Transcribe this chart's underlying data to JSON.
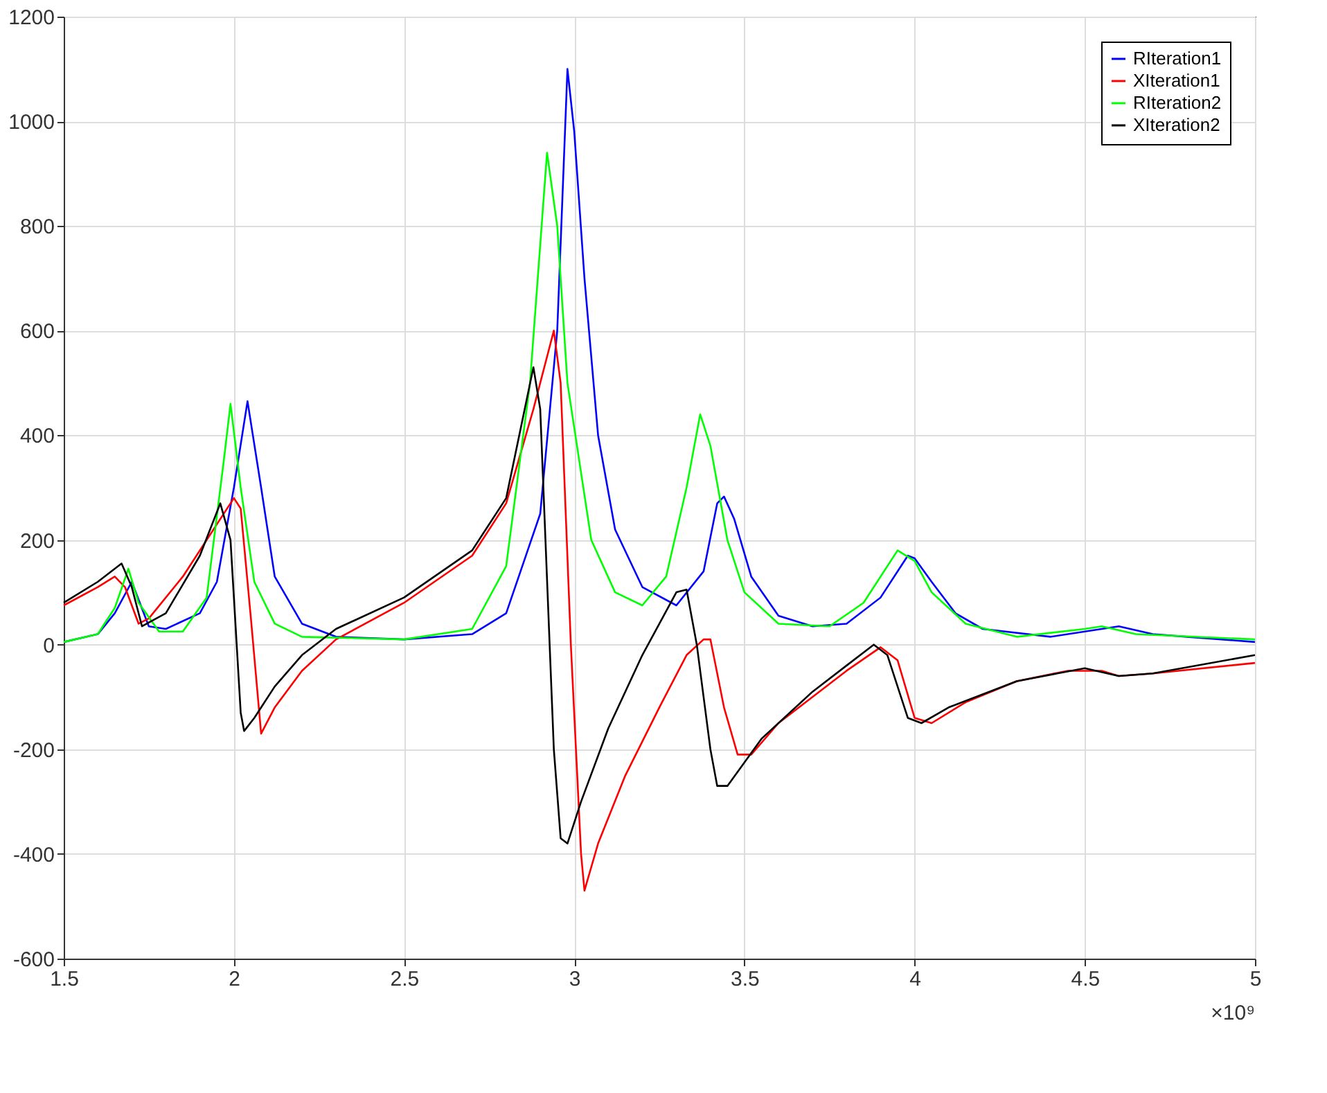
{
  "chart_data": {
    "type": "line",
    "xlim": [
      1.5,
      5
    ],
    "xticks": [
      1.5,
      2,
      2.5,
      3,
      3.5,
      4,
      4.5,
      5
    ],
    "ylim": [
      -600,
      1200
    ],
    "yticks": [
      -600,
      -400,
      -200,
      0,
      200,
      400,
      600,
      800,
      1000,
      1200
    ],
    "grid": true,
    "legend": "top right",
    "line_style": "solid",
    "marker": "none",
    "annotations": [
      "×10⁹"
    ],
    "series": [
      {
        "name": "RIteration1",
        "color": "#0000ff",
        "x": [
          1.5,
          1.6,
          1.65,
          1.7,
          1.75,
          1.8,
          1.9,
          1.95,
          2.0,
          2.04,
          2.08,
          2.12,
          2.2,
          2.3,
          2.5,
          2.7,
          2.8,
          2.9,
          2.95,
          2.98,
          3.0,
          3.03,
          3.07,
          3.12,
          3.2,
          3.3,
          3.38,
          3.42,
          3.44,
          3.47,
          3.52,
          3.6,
          3.7,
          3.8,
          3.9,
          3.98,
          4.0,
          4.05,
          4.12,
          4.2,
          4.4,
          4.55,
          4.6,
          4.7,
          4.8,
          5.0
        ],
        "values": [
          5,
          20,
          60,
          120,
          35,
          30,
          60,
          120,
          300,
          465,
          300,
          130,
          40,
          15,
          10,
          20,
          60,
          250,
          600,
          1100,
          980,
          700,
          400,
          220,
          110,
          75,
          140,
          270,
          283,
          240,
          130,
          55,
          35,
          40,
          90,
          170,
          165,
          120,
          60,
          30,
          15,
          30,
          35,
          20,
          15,
          5
        ]
      },
      {
        "name": "XIteration1",
        "color": "#ff0000",
        "x": [
          1.5,
          1.6,
          1.65,
          1.68,
          1.72,
          1.75,
          1.85,
          1.95,
          2.0,
          2.02,
          2.05,
          2.08,
          2.12,
          2.2,
          2.3,
          2.5,
          2.7,
          2.8,
          2.88,
          2.94,
          2.96,
          2.99,
          3.02,
          3.03,
          3.07,
          3.15,
          3.25,
          3.33,
          3.38,
          3.4,
          3.44,
          3.48,
          3.52,
          3.6,
          3.7,
          3.8,
          3.9,
          3.95,
          4.0,
          4.05,
          4.15,
          4.3,
          4.45,
          4.55,
          4.6,
          4.7,
          5.0
        ],
        "values": [
          75,
          110,
          130,
          110,
          40,
          50,
          130,
          230,
          280,
          260,
          50,
          -170,
          -120,
          -50,
          10,
          80,
          170,
          270,
          450,
          600,
          500,
          0,
          -400,
          -470,
          -380,
          -250,
          -120,
          -20,
          10,
          10,
          -120,
          -210,
          -210,
          -150,
          -100,
          -50,
          -5,
          -30,
          -140,
          -150,
          -110,
          -70,
          -50,
          -50,
          -60,
          -55,
          -35
        ]
      },
      {
        "name": "RIteration2",
        "color": "#00ff00",
        "x": [
          1.5,
          1.6,
          1.65,
          1.69,
          1.72,
          1.78,
          1.85,
          1.92,
          1.97,
          1.99,
          2.02,
          2.06,
          2.12,
          2.2,
          2.5,
          2.7,
          2.8,
          2.87,
          2.92,
          2.95,
          2.98,
          3.05,
          3.12,
          3.2,
          3.27,
          3.33,
          3.37,
          3.4,
          3.45,
          3.5,
          3.6,
          3.75,
          3.85,
          3.95,
          4.0,
          4.05,
          4.15,
          4.3,
          4.5,
          4.55,
          4.65,
          5.0
        ],
        "values": [
          5,
          20,
          70,
          145,
          80,
          25,
          25,
          90,
          350,
          460,
          300,
          120,
          40,
          15,
          10,
          30,
          150,
          500,
          940,
          800,
          500,
          200,
          100,
          75,
          130,
          300,
          440,
          380,
          200,
          100,
          40,
          35,
          80,
          180,
          160,
          100,
          40,
          15,
          30,
          35,
          20,
          10
        ]
      },
      {
        "name": "XIteration2",
        "color": "#000000",
        "x": [
          1.5,
          1.6,
          1.67,
          1.7,
          1.73,
          1.8,
          1.9,
          1.96,
          1.99,
          2.02,
          2.03,
          2.06,
          2.12,
          2.2,
          2.3,
          2.5,
          2.7,
          2.8,
          2.88,
          2.9,
          2.94,
          2.96,
          2.98,
          3.02,
          3.1,
          3.2,
          3.3,
          3.33,
          3.36,
          3.4,
          3.42,
          3.45,
          3.55,
          3.7,
          3.8,
          3.88,
          3.92,
          3.98,
          4.02,
          4.1,
          4.3,
          4.5,
          4.6,
          4.7,
          5.0
        ],
        "values": [
          80,
          120,
          155,
          110,
          35,
          60,
          170,
          270,
          200,
          -130,
          -165,
          -140,
          -80,
          -20,
          30,
          90,
          180,
          280,
          530,
          450,
          -200,
          -370,
          -380,
          -300,
          -160,
          -20,
          100,
          105,
          0,
          -200,
          -270,
          -270,
          -180,
          -90,
          -40,
          0,
          -20,
          -140,
          -150,
          -120,
          -70,
          -45,
          -60,
          -55,
          -20
        ]
      }
    ]
  }
}
